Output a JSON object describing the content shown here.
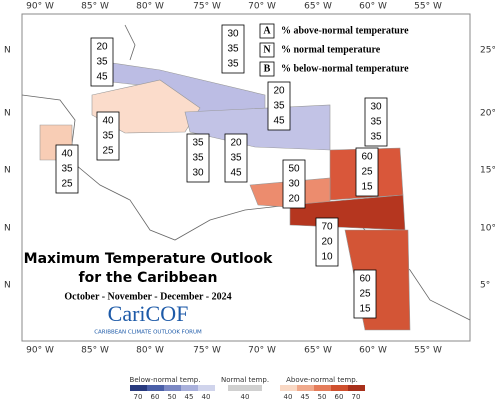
{
  "map": {
    "lon_labels": [
      "90° W",
      "85° W",
      "80° W",
      "75° W",
      "70° W",
      "65° W",
      "60° W",
      "55° W"
    ],
    "lat_labels_left": [
      "N",
      "N",
      "N",
      "N",
      "N"
    ],
    "lat_labels_right": [
      "25°",
      "20°",
      "15°",
      "10°",
      "5°"
    ]
  },
  "regions": [
    {
      "above": 30,
      "normal": 35,
      "below": 35
    },
    {
      "above": 20,
      "normal": 35,
      "below": 45
    },
    {
      "above": 20,
      "normal": 35,
      "below": 45
    },
    {
      "above": 30,
      "normal": 35,
      "below": 35
    },
    {
      "above": 40,
      "normal": 35,
      "below": 25
    },
    {
      "above": 35,
      "normal": 35,
      "below": 30
    },
    {
      "above": 20,
      "normal": 35,
      "below": 45
    },
    {
      "above": 40,
      "normal": 35,
      "below": 25
    },
    {
      "above": 60,
      "normal": 25,
      "below": 15
    },
    {
      "above": 50,
      "normal": 30,
      "below": 20
    },
    {
      "above": 70,
      "normal": 20,
      "below": 10
    },
    {
      "above": 60,
      "normal": 25,
      "below": 15
    }
  ],
  "legend": [
    {
      "key": "A",
      "text": "% above-normal temperature"
    },
    {
      "key": "N",
      "text": "% normal temperature"
    },
    {
      "key": "B",
      "text": "% below-normal temperature"
    }
  ],
  "title": {
    "line1": "Maximum Temperature Outlook",
    "line2": "for the Caribbean",
    "period": "October - November - December - 2024"
  },
  "logo": {
    "name": "CariCOF",
    "tagline": "CARIBBEAN CLIMATE OUTLOOK FORUM"
  },
  "colorbar": {
    "below_label": "Below-normal temp.",
    "below_ticks": [
      70,
      60,
      50,
      45,
      40
    ],
    "normal_label": "Normal temp.",
    "normal_ticks": [
      40
    ],
    "above_label": "Above-normal temp.",
    "above_ticks": [
      40,
      45,
      50,
      60,
      70
    ]
  }
}
